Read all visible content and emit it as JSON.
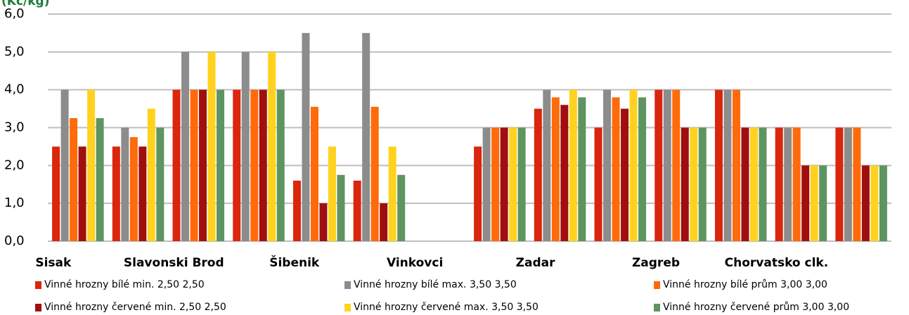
{
  "chart_data": {
    "type": "bar",
    "title": "(Kč/kg)",
    "categories": [
      "Sisak",
      null,
      "Slavonski Brod",
      null,
      "Šibenik",
      null,
      "Vinkovci",
      null,
      "Zadar",
      null,
      "Zagreb",
      null,
      "Chorvatsko clk.",
      null
    ],
    "series": [
      {
        "name": "Vinné hrozny bílé min. 2,50 2,50",
        "color": "#d9260d",
        "values": [
          2.5,
          2.5,
          4,
          4,
          1.6,
          1.6,
          null,
          2.5,
          3.5,
          3,
          4,
          4,
          3,
          3
        ]
      },
      {
        "name": "Vinné hrozny bílé max. 3,50 3,50",
        "color": "#8c8c8c",
        "values": [
          4,
          3,
          5,
          5,
          5.5,
          5.5,
          null,
          3,
          4,
          4,
          4,
          4,
          3,
          3
        ]
      },
      {
        "name": "Vinné hrozny bílé prům 3,00 3,00",
        "color": "#ff6a0a",
        "values": [
          3.25,
          2.75,
          4,
          4,
          3.55,
          3.55,
          null,
          3,
          3.8,
          3.8,
          4,
          4,
          3,
          3
        ]
      },
      {
        "name": "Vinné hrozny červené min. 2,50 2,50",
        "color": "#a00f0f",
        "values": [
          2.5,
          2.5,
          4,
          4,
          1,
          1,
          null,
          3,
          3.6,
          3.5,
          3,
          3,
          2,
          2
        ]
      },
      {
        "name": "Vinné hrozny červené max. 3,50 3,50",
        "color": "#ffd21f",
        "values": [
          4,
          3.5,
          5,
          5,
          2.5,
          2.5,
          null,
          3,
          4,
          4,
          3,
          3,
          2,
          2
        ]
      },
      {
        "name": "Vinné hrozny červené prům 3,00 3,00",
        "color": "#5e9460",
        "values": [
          3.25,
          3,
          4,
          4,
          1.75,
          1.75,
          null,
          3,
          3.8,
          3.8,
          3,
          3,
          2,
          2
        ]
      }
    ],
    "ylim": [
      0,
      6
    ],
    "yticks": [
      {
        "value": 0,
        "label": "0,0"
      },
      {
        "value": 1,
        "label": "1,0"
      },
      {
        "value": 2,
        "label": "2,0"
      },
      {
        "value": 3,
        "label": "3,0"
      },
      {
        "value": 4,
        "label": "4,0"
      },
      {
        "value": 5,
        "label": "5,0"
      },
      {
        "value": 6,
        "label": "6,0"
      }
    ],
    "grid": true
  }
}
